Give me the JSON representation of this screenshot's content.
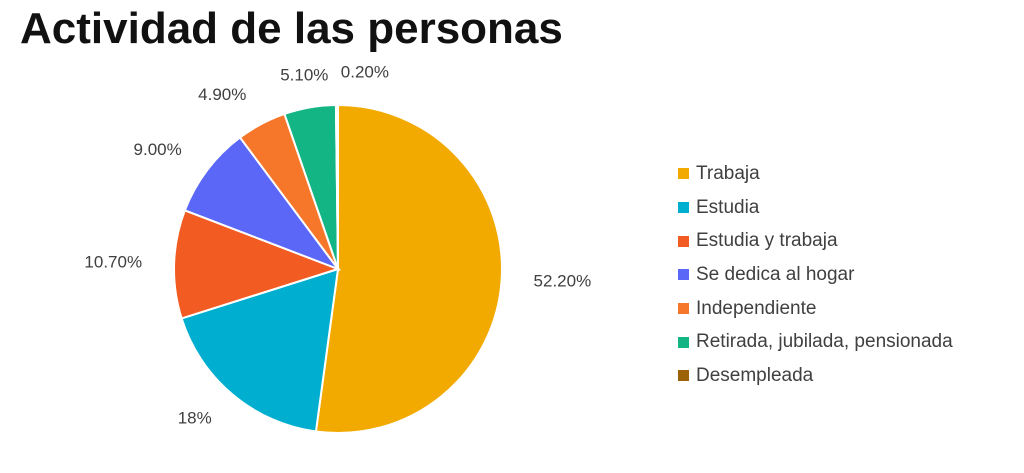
{
  "title": "Actividad de las personas",
  "chart_data": {
    "type": "pie",
    "title": "Actividad de las personas",
    "slices": [
      {
        "label": "Trabaja",
        "value": 52.2,
        "display": "52.20%",
        "color": "#F2A900"
      },
      {
        "label": "Estudia",
        "value": 18.0,
        "display": "18%",
        "color": "#00AECF"
      },
      {
        "label": "Estudia y trabaja",
        "value": 10.7,
        "display": "10.70%",
        "color": "#F25C22"
      },
      {
        "label": "Se dedica al hogar",
        "value": 9.0,
        "display": "9.00%",
        "color": "#5B67F6"
      },
      {
        "label": "Independiente",
        "value": 4.9,
        "display": "4.90%",
        "color": "#F7772A"
      },
      {
        "label": "Retirada, jubilada, pensionada",
        "value": 5.1,
        "display": "5.10%",
        "color": "#14B584"
      },
      {
        "label": "Desempleada",
        "value": 0.2,
        "display": "0.20%",
        "color": "#9B6207"
      }
    ],
    "start_angle": "12 o'clock",
    "direction": "clockwise",
    "legend_position": "right"
  }
}
